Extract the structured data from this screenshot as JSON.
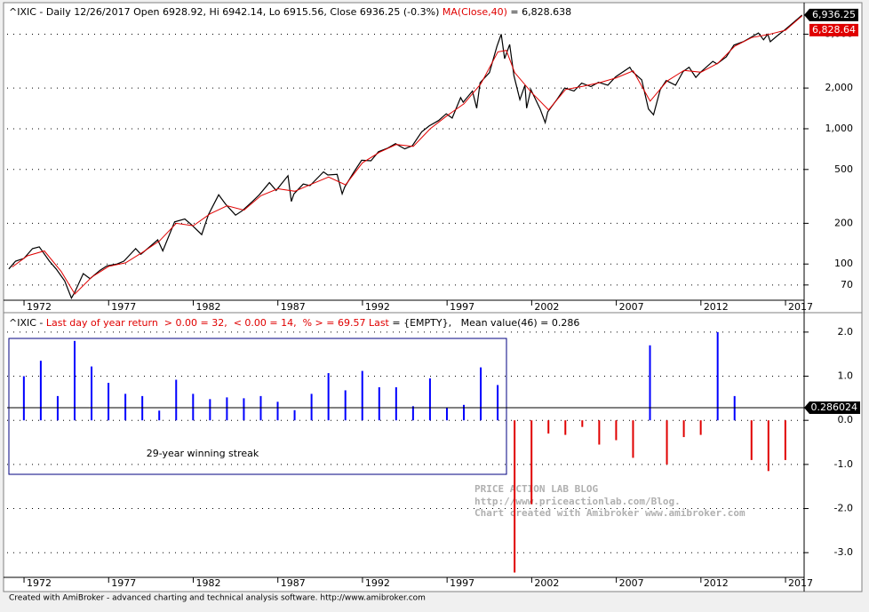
{
  "chart_data": [
    {
      "type": "line",
      "title": "^IXIC - Daily 12/26/2017 Open 6928.92, Hi 6942.14, Lo 6915.56, Close 6936.25 (-0.3%) ",
      "ma_text": " = 6,828.638",
      "log_y": true,
      "grid": true,
      "xlim": [
        1971,
        2018.1
      ],
      "xticks": [
        1972,
        1977,
        1982,
        1987,
        1992,
        1997,
        2002,
        2007,
        2012,
        2017
      ],
      "ylim": [
        54,
        8300
      ],
      "yticks": [
        70,
        100,
        200,
        500,
        {
          "value": 1000,
          "label": "1,000"
        },
        {
          "value": 2000,
          "label": "2,000"
        },
        {
          "value": 5000,
          "label": "5,000"
        }
      ],
      "last_labels": [
        {
          "value": 6936.25,
          "label": "6,936.25"
        },
        {
          "value": 6828.64,
          "label": "6,828.64"
        }
      ],
      "series": [
        {
          "color": "#000000",
          "x": [
            1971.1,
            1971.5,
            1972.0,
            1972.5,
            1972.9,
            1973.5,
            1973.9,
            1974.4,
            1974.8,
            1975.0,
            1975.5,
            1975.9,
            1976.5,
            1976.9,
            1977.5,
            1977.9,
            1978.6,
            1978.9,
            1979.6,
            1979.9,
            1980.2,
            1980.9,
            1981.5,
            1981.9,
            1982.5,
            1982.9,
            1983.5,
            1983.9,
            1984.5,
            1984.9,
            1985.5,
            1985.9,
            1986.5,
            1986.9,
            1987.6,
            1987.8,
            1987.95,
            1988.5,
            1988.9,
            1989.7,
            1989.95,
            1990.5,
            1990.8,
            1990.95,
            1991.5,
            1991.95,
            1992.5,
            1992.95,
            1993.5,
            1993.95,
            1994.5,
            1994.95,
            1995.5,
            1995.95,
            1996.5,
            1996.95,
            1997.3,
            1997.8,
            1997.95,
            1998.5,
            1998.75,
            1998.95,
            1999.5,
            1999.95,
            2000.2,
            2000.4,
            2000.7,
            2000.95,
            2001.3,
            2001.6,
            2001.7,
            2001.95,
            2002.5,
            2002.8,
            2002.95,
            2003.5,
            2003.95,
            2004.5,
            2004.95,
            2005.5,
            2005.95,
            2006.5,
            2006.95,
            2007.8,
            2007.95,
            2008.5,
            2008.9,
            2009.2,
            2009.6,
            2009.95,
            2010.5,
            2010.95,
            2011.3,
            2011.7,
            2011.95,
            2012.7,
            2012.95,
            2013.5,
            2013.95,
            2014.5,
            2014.95,
            2015.4,
            2015.7,
            2015.95,
            2016.1,
            2016.5,
            2016.95,
            2017.5,
            2017.98
          ],
          "values": [
            92,
            105,
            110,
            130,
            134,
            105,
            92,
            75,
            56,
            62,
            85,
            78,
            90,
            97,
            100,
            105,
            130,
            118,
            140,
            151,
            125,
            205,
            215,
            195,
            165,
            232,
            325,
            278,
            230,
            248,
            290,
            325,
            400,
            350,
            450,
            290,
            330,
            390,
            380,
            480,
            455,
            460,
            330,
            370,
            480,
            585,
            580,
            677,
            720,
            776,
            710,
            750,
            950,
            1052,
            1150,
            1290,
            1200,
            1700,
            1570,
            1900,
            1420,
            2190,
            2600,
            4070,
            5000,
            3300,
            4200,
            2470,
            1640,
            2100,
            1420,
            1950,
            1400,
            1110,
            1335,
            1650,
            2000,
            1900,
            2175,
            2050,
            2205,
            2100,
            2415,
            2850,
            2650,
            2300,
            1400,
            1270,
            1950,
            2270,
            2100,
            2650,
            2850,
            2400,
            2600,
            3150,
            3020,
            3400,
            4150,
            4400,
            4740,
            5100,
            4550,
            5000,
            4400,
            4850,
            5380,
            6150,
            6936.25
          ]
        },
        {
          "name": "MA(Close,40)",
          "color": "#e00000",
          "x": [
            1971.3,
            1972.2,
            1973.2,
            1974.2,
            1975.0,
            1976.0,
            1977.0,
            1978.0,
            1979.0,
            1980.0,
            1981.0,
            1982.0,
            1983.0,
            1984.0,
            1985.0,
            1986.0,
            1987.0,
            1988.0,
            1989.0,
            1990.0,
            1991.0,
            1992.0,
            1993.0,
            1994.0,
            1995.0,
            1996.0,
            1997.0,
            1998.0,
            1999.0,
            2000.0,
            2000.5,
            2001.0,
            2002.0,
            2003.0,
            2004.0,
            2005.0,
            2006.0,
            2007.0,
            2008.0,
            2009.0,
            2010.0,
            2011.0,
            2012.0,
            2013.0,
            2014.0,
            2015.0,
            2016.0,
            2017.0,
            2017.98
          ],
          "values": [
            95,
            115,
            125,
            88,
            60,
            80,
            96,
            102,
            122,
            148,
            200,
            192,
            235,
            270,
            250,
            320,
            360,
            345,
            390,
            440,
            385,
            560,
            670,
            765,
            740,
            1000,
            1250,
            1530,
            2150,
            3700,
            3800,
            2600,
            1850,
            1380,
            1950,
            2060,
            2190,
            2380,
            2680,
            1600,
            2250,
            2700,
            2620,
            3050,
            4080,
            4720,
            4980,
            5350,
            6828.64
          ]
        }
      ]
    },
    {
      "type": "bar",
      "title": "^IXIC - ",
      "name_text": "Last day of year return  > 0.00 = 32,  < 0.00 = 14,  % > = 69.57 Last",
      "tail_text": " = {EMPTY},   Mean value(46) = 0.286",
      "grid": true,
      "xlim": [
        1971,
        2018.1
      ],
      "xticks": [
        1972,
        1977,
        1982,
        1987,
        1992,
        1997,
        2002,
        2007,
        2012,
        2017
      ],
      "ylim": [
        -3.56,
        2.38
      ],
      "yticks": [
        {
          "value": 2,
          "label": "2.0"
        },
        {
          "value": 1,
          "label": "1.0"
        },
        {
          "value": 0,
          "label": "0.0"
        },
        {
          "value": -1,
          "label": "-1.0"
        },
        {
          "value": -2,
          "label": "-2.0"
        },
        {
          "value": -3,
          "label": "-3.0"
        }
      ],
      "mean_line": 0.286024,
      "positive_color": "#0000ff",
      "negative_color": "#e00000",
      "x": [
        1971.99,
        1972.99,
        1973.99,
        1974.99,
        1975.99,
        1976.99,
        1977.99,
        1978.99,
        1979.99,
        1980.99,
        1981.99,
        1982.99,
        1983.99,
        1984.99,
        1985.99,
        1986.99,
        1987.99,
        1988.99,
        1989.99,
        1990.99,
        1991.99,
        1992.99,
        1993.99,
        1994.99,
        1995.99,
        1996.99,
        1997.99,
        1998.99,
        1999.99,
        2000.99,
        2001.99,
        2002.99,
        2003.99,
        2004.99,
        2005.99,
        2006.99,
        2007.99,
        2008.99,
        2009.99,
        2010.99,
        2011.99,
        2012.99,
        2013.99,
        2014.99,
        2015.99,
        2016.99
      ],
      "values": [
        1.0,
        1.35,
        0.55,
        1.8,
        1.22,
        0.85,
        0.6,
        0.55,
        0.22,
        0.92,
        0.6,
        0.48,
        0.52,
        0.5,
        0.55,
        0.42,
        0.23,
        0.6,
        1.07,
        0.68,
        1.12,
        0.75,
        0.75,
        0.32,
        0.95,
        0.28,
        0.35,
        1.2,
        0.8,
        -3.45,
        -1.9,
        -0.3,
        -0.33,
        -0.15,
        -0.55,
        -0.45,
        -0.85,
        1.7,
        -1.0,
        -0.38,
        -0.33,
        2.0,
        0.55,
        -0.9,
        -1.15,
        -0.9
      ],
      "annotation": "29-year winning streak",
      "watermark": [
        "PRICE ACTION LAB BLOG",
        "http://www.priceactionlab.com/Blog.",
        "Chart created with Amibroker www.amibroker.com"
      ]
    }
  ],
  "footer": "Created with AmiBroker - advanced charting and technical analysis software. http://www.amibroker.com"
}
